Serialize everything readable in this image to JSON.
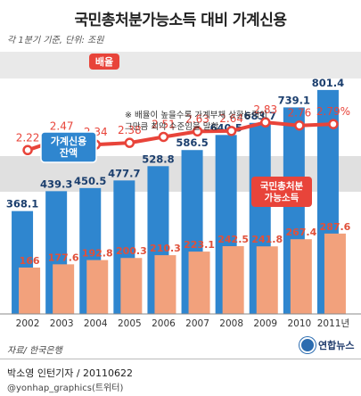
{
  "header": {
    "title": "국민총처분가능소득 대비 가계신용",
    "note_units": "각 1분기 기준, 단위: 조원"
  },
  "chart_data": {
    "type": "bar",
    "categories": [
      "2002",
      "2003",
      "2004",
      "2005",
      "2006",
      "2007",
      "2008",
      "2009",
      "2010",
      "2011년"
    ],
    "series": [
      {
        "name": "가계신용 잔액",
        "values": [
          368.1,
          439.3,
          450.5,
          477.7,
          528.8,
          586.5,
          640.5,
          683.7,
          739.1,
          801.4
        ],
        "color": "#2f86cf"
      },
      {
        "name": "국민총처분 가능소득",
        "values": [
          166,
          177.6,
          192.8,
          200.3,
          210.3,
          223.1,
          242.5,
          241.8,
          267.4,
          287.6
        ],
        "color": "#f2a17c"
      }
    ],
    "line": {
      "name": "배율",
      "values": [
        2.22,
        2.47,
        2.34,
        2.38,
        2.51,
        2.63,
        2.64,
        2.83,
        2.76,
        2.79
      ],
      "labels": [
        "2.22",
        "2.47",
        "2.34",
        "2.38",
        "2.51",
        "2.63",
        "2.64",
        "2.83",
        "2.76",
        "2.79%"
      ],
      "color": "#e8443a"
    },
    "bar_labels": {
      "blue": [
        "368.1",
        "439.3",
        "450.5",
        "477.7",
        "528.8",
        "586.5",
        "640.5",
        "683.7",
        "739.1",
        "801.4"
      ],
      "orange": [
        "166",
        "177.6",
        "192.8",
        "200.3",
        "210.3",
        "223.1",
        "242.5",
        "241.8",
        "267.4",
        "287.6"
      ]
    },
    "annotation": [
      "※ 배율이 높을수록 가계부채 상환능력이",
      "그만큼 최악 수준임을 말함."
    ],
    "ylim": [
      0,
      900
    ],
    "line_ylim": [
      1.6,
      3.4
    ],
    "grid": false
  },
  "footer": {
    "source": "자료/ 한국은행",
    "logo_text": "연합뉴스",
    "credit": "박소영 인턴기자 / 20110622",
    "twitter": "@yonhap_graphics(트위터)"
  }
}
